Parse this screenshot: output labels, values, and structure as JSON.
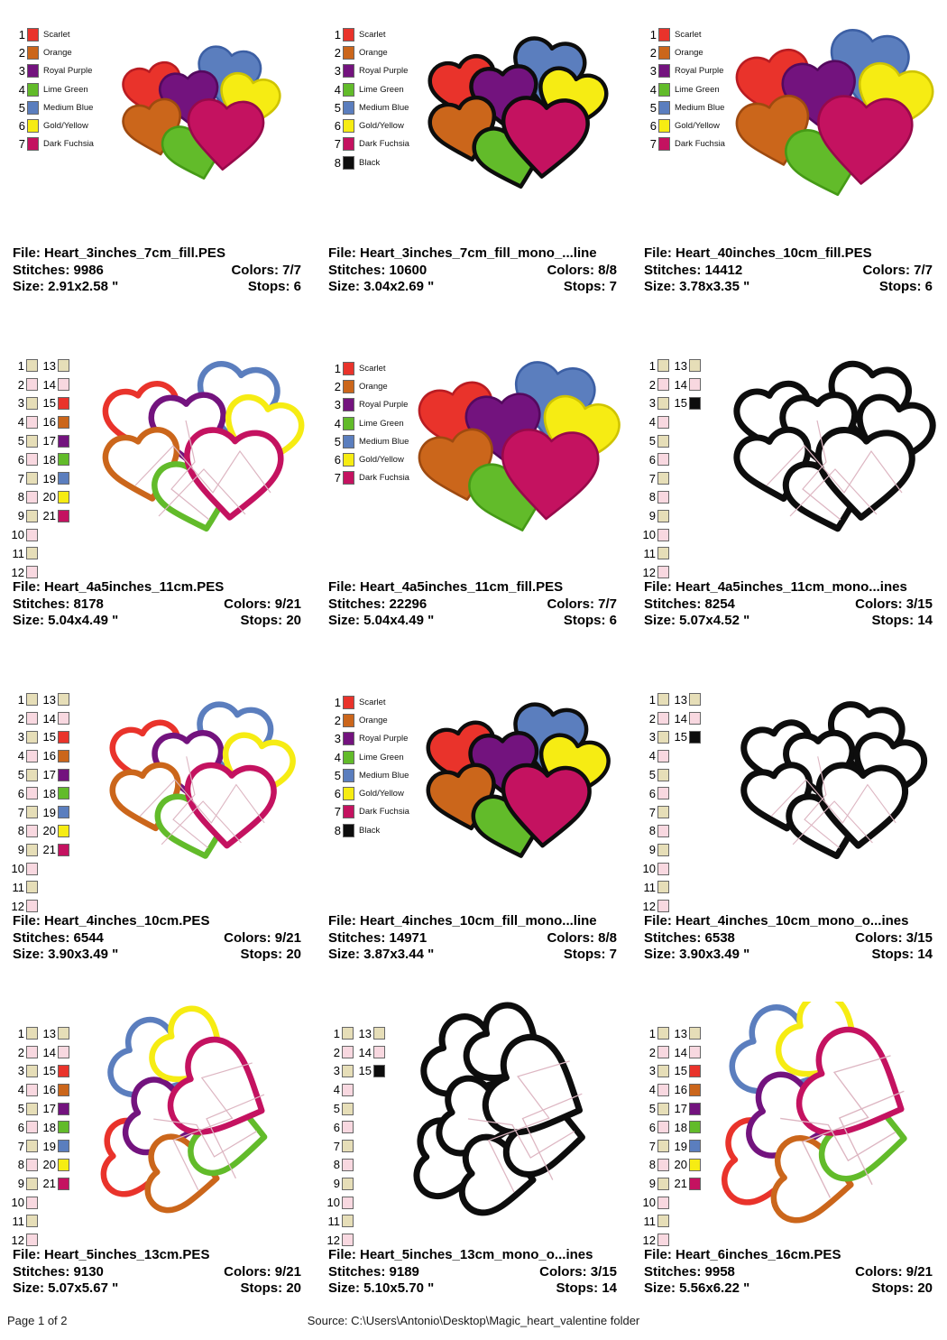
{
  "page": {
    "footer_left": "Page 1 of 2",
    "footer_center": "Source: C:\\Users\\Antonio\\Desktop\\Magic_heart_valentine folder"
  },
  "palette": {
    "scarlet": {
      "fill": "#E9332B",
      "dark": "#B91C22"
    },
    "orange": {
      "fill": "#CB661B",
      "dark": "#9E4A10"
    },
    "purple": {
      "fill": "#73137E",
      "dark": "#54095E"
    },
    "green": {
      "fill": "#62BB2A",
      "dark": "#459A16"
    },
    "blue": {
      "fill": "#5B7EBE",
      "dark": "#3C5FA4"
    },
    "yellow": {
      "fill": "#F6EC13",
      "dark": "#CFC400"
    },
    "fuchsia": {
      "fill": "#C41260",
      "dark": "#97094A"
    },
    "black": {
      "fill": "#0D0D0D",
      "dark": "#000000"
    },
    "tan": {
      "fill": "#E6DEB8",
      "dark": "#C9BF93"
    },
    "pink": {
      "fill": "#F8D8E0",
      "dark": "#E3B7C3"
    },
    "placement_line": "#DDB6C2"
  },
  "legends": {
    "seven": {
      "type": "named",
      "items": [
        {
          "n": 1,
          "c": "scarlet",
          "label": "Scarlet"
        },
        {
          "n": 2,
          "c": "orange",
          "label": "Orange"
        },
        {
          "n": 3,
          "c": "purple",
          "label": "Royal Purple"
        },
        {
          "n": 4,
          "c": "green",
          "label": "Lime Green"
        },
        {
          "n": 5,
          "c": "blue",
          "label": "Medium Blue"
        },
        {
          "n": 6,
          "c": "yellow",
          "label": "Gold/Yellow"
        },
        {
          "n": 7,
          "c": "fuchsia",
          "label": "Dark Fuchsia"
        }
      ]
    },
    "eight": {
      "type": "named",
      "items": [
        {
          "n": 1,
          "c": "scarlet",
          "label": "Scarlet"
        },
        {
          "n": 2,
          "c": "orange",
          "label": "Orange"
        },
        {
          "n": 3,
          "c": "purple",
          "label": "Royal Purple"
        },
        {
          "n": 4,
          "c": "green",
          "label": "Lime Green"
        },
        {
          "n": 5,
          "c": "blue",
          "label": "Medium Blue"
        },
        {
          "n": 6,
          "c": "yellow",
          "label": "Gold/Yellow"
        },
        {
          "n": 7,
          "c": "fuchsia",
          "label": "Dark Fuchsia"
        },
        {
          "n": 8,
          "c": "black",
          "label": "Black"
        }
      ]
    },
    "fifteen": {
      "type": "numbered",
      "items": [
        {
          "n": 1,
          "c": "tan"
        },
        {
          "n": 2,
          "c": "pink"
        },
        {
          "n": 3,
          "c": "tan"
        },
        {
          "n": 4,
          "c": "pink"
        },
        {
          "n": 5,
          "c": "tan"
        },
        {
          "n": 6,
          "c": "pink"
        },
        {
          "n": 7,
          "c": "tan"
        },
        {
          "n": 8,
          "c": "pink"
        },
        {
          "n": 9,
          "c": "tan"
        },
        {
          "n": 10,
          "c": "pink"
        },
        {
          "n": 11,
          "c": "tan"
        },
        {
          "n": 12,
          "c": "pink"
        },
        {
          "n": 13,
          "c": "tan"
        },
        {
          "n": 14,
          "c": "pink"
        },
        {
          "n": 15,
          "c": "black"
        }
      ]
    },
    "twentyone": {
      "type": "numbered",
      "items": [
        {
          "n": 1,
          "c": "tan"
        },
        {
          "n": 2,
          "c": "pink"
        },
        {
          "n": 3,
          "c": "tan"
        },
        {
          "n": 4,
          "c": "pink"
        },
        {
          "n": 5,
          "c": "tan"
        },
        {
          "n": 6,
          "c": "pink"
        },
        {
          "n": 7,
          "c": "tan"
        },
        {
          "n": 8,
          "c": "pink"
        },
        {
          "n": 9,
          "c": "tan"
        },
        {
          "n": 10,
          "c": "pink"
        },
        {
          "n": 11,
          "c": "tan"
        },
        {
          "n": 12,
          "c": "pink"
        },
        {
          "n": 13,
          "c": "tan"
        },
        {
          "n": 14,
          "c": "pink"
        },
        {
          "n": 15,
          "c": "scarlet"
        },
        {
          "n": 16,
          "c": "orange"
        },
        {
          "n": 17,
          "c": "purple"
        },
        {
          "n": 18,
          "c": "green"
        },
        {
          "n": 19,
          "c": "blue"
        },
        {
          "n": 20,
          "c": "yellow"
        },
        {
          "n": 21,
          "c": "fuchsia"
        }
      ]
    }
  },
  "cells": [
    {
      "legend": "seven",
      "design": {
        "variant": "fill",
        "scale": 0.8,
        "rotated": false
      },
      "info": {
        "file": "File: Heart_3inches_7cm_fill.PES",
        "stitches": "Stitches: 9986",
        "colors": "Colors: 7/7",
        "size": "Size: 2.91x2.58 \"",
        "stops": "Stops: 6"
      }
    },
    {
      "legend": "eight",
      "design": {
        "variant": "fill-mono",
        "scale": 0.9,
        "rotated": false
      },
      "info": {
        "file": "File: Heart_3inches_7cm_fill_mono_...line",
        "stitches": "Stitches: 10600",
        "colors": "Colors: 8/8",
        "size": "Size: 3.04x2.69 \"",
        "stops": "Stops: 7"
      }
    },
    {
      "legend": "seven",
      "design": {
        "variant": "fill",
        "scale": 1.0,
        "rotated": false
      },
      "info": {
        "file": "File: Heart_40inches_10cm_fill.PES",
        "stitches": "Stitches: 14412",
        "colors": "Colors: 7/7",
        "size": "Size: 3.78x3.35 \"",
        "stops": "Stops: 6"
      }
    },
    {
      "legend": "twentyone",
      "design": {
        "variant": "outline",
        "scale": 1.0,
        "rotated": false
      },
      "info": {
        "file": "File: Heart_4a5inches_11cm.PES",
        "stitches": "Stitches: 8178",
        "colors": "Colors: 9/21",
        "size": "Size: 5.04x4.49 \"",
        "stops": "Stops: 20"
      }
    },
    {
      "legend": "seven",
      "design": {
        "variant": "fill",
        "scale": 1.02,
        "rotated": false
      },
      "info": {
        "file": "File: Heart_4a5inches_11cm_fill.PES",
        "stitches": "Stitches: 22296",
        "colors": "Colors: 7/7",
        "size": "Size: 5.04x4.49 \"",
        "stops": "Stops: 6"
      }
    },
    {
      "legend": "fifteen",
      "design": {
        "variant": "outline-mono",
        "scale": 1.0,
        "rotated": false
      },
      "info": {
        "file": "File: Heart_4a5inches_11cm_mono...ines",
        "stitches": "Stitches: 8254",
        "colors": "Colors: 3/15",
        "size": "Size: 5.07x4.52 \"",
        "stops": "Stops: 14"
      }
    },
    {
      "legend": "twentyone",
      "design": {
        "variant": "outline",
        "scale": 0.92,
        "rotated": false
      },
      "info": {
        "file": "File: Heart_4inches_10cm.PES",
        "stitches": "Stitches: 6544",
        "colors": "Colors: 9/21",
        "size": "Size: 3.90x3.49 \"",
        "stops": "Stops: 20"
      }
    },
    {
      "legend": "eight",
      "design": {
        "variant": "fill-mono",
        "scale": 0.92,
        "rotated": false
      },
      "info": {
        "file": "File: Heart_4inches_10cm_fill_mono...line",
        "stitches": "Stitches: 14971",
        "colors": "Colors: 8/8",
        "size": "Size: 3.87x3.44 \"",
        "stops": "Stops: 7"
      }
    },
    {
      "legend": "fifteen",
      "design": {
        "variant": "outline-mono",
        "scale": 0.92,
        "rotated": false
      },
      "info": {
        "file": "File: Heart_4inches_10cm_mono_o...ines",
        "stitches": "Stitches: 6538",
        "colors": "Colors: 3/15",
        "size": "Size: 3.90x3.49 \"",
        "stops": "Stops: 14"
      }
    },
    {
      "legend": "twentyone",
      "design": {
        "variant": "outline",
        "scale": 1.02,
        "rotated": true
      },
      "info": {
        "file": "File: Heart_5inches_13cm.PES",
        "stitches": "Stitches: 9130",
        "colors": "Colors: 9/21",
        "size": "Size: 5.07x5.67 \"",
        "stops": "Stops: 20"
      }
    },
    {
      "legend": "fifteen",
      "design": {
        "variant": "outline-mono",
        "scale": 1.05,
        "rotated": true
      },
      "info": {
        "file": "File: Heart_5inches_13cm_mono_o...ines",
        "stitches": "Stitches: 9189",
        "colors": "Colors: 3/15",
        "size": "Size: 5.10x5.70 \"",
        "stops": "Stops: 14"
      }
    },
    {
      "legend": "twentyone",
      "design": {
        "variant": "outline",
        "scale": 1.14,
        "rotated": true
      },
      "info": {
        "file": "File: Heart_6inches_16cm.PES",
        "stitches": "Stitches: 9958",
        "colors": "Colors: 9/21",
        "size": "Size: 5.56x6.22 \"",
        "stops": "Stops: 20"
      }
    }
  ]
}
